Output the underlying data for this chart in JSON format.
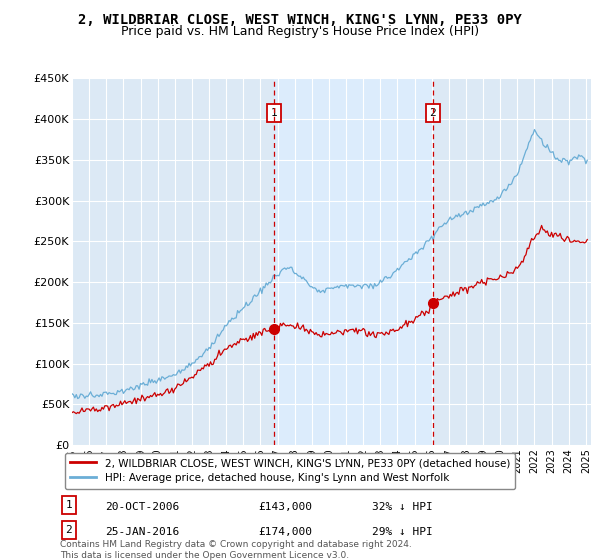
{
  "title": "2, WILDBRIAR CLOSE, WEST WINCH, KING'S LYNN, PE33 0PY",
  "subtitle": "Price paid vs. HM Land Registry's House Price Index (HPI)",
  "ylim": [
    0,
    450000
  ],
  "yticks": [
    0,
    50000,
    100000,
    150000,
    200000,
    250000,
    300000,
    350000,
    400000,
    450000
  ],
  "ytick_labels": [
    "£0",
    "£50K",
    "£100K",
    "£150K",
    "£200K",
    "£250K",
    "£300K",
    "£350K",
    "£400K",
    "£450K"
  ],
  "xlim_start": 1995.0,
  "xlim_end": 2025.3,
  "red_line_color": "#cc0000",
  "blue_line_color": "#6baed6",
  "point1_x": 2006.8,
  "point1_y": 143000,
  "point2_x": 2016.07,
  "point2_y": 174000,
  "vline_color": "#cc0000",
  "shade_color": "#ddeeff",
  "legend_label_red": "2, WILDBRIAR CLOSE, WEST WINCH, KING'S LYNN, PE33 0PY (detached house)",
  "legend_label_blue": "HPI: Average price, detached house, King's Lynn and West Norfolk",
  "table_row1": [
    "1",
    "20-OCT-2006",
    "£143,000",
    "32% ↓ HPI"
  ],
  "table_row2": [
    "2",
    "25-JAN-2016",
    "£174,000",
    "29% ↓ HPI"
  ],
  "footer": "Contains HM Land Registry data © Crown copyright and database right 2024.\nThis data is licensed under the Open Government Licence v3.0.",
  "bg_color": "#ffffff",
  "plot_bg_color": "#dce9f5",
  "grid_color": "#ffffff",
  "title_fontsize": 10,
  "subtitle_fontsize": 9,
  "tick_fontsize": 8
}
